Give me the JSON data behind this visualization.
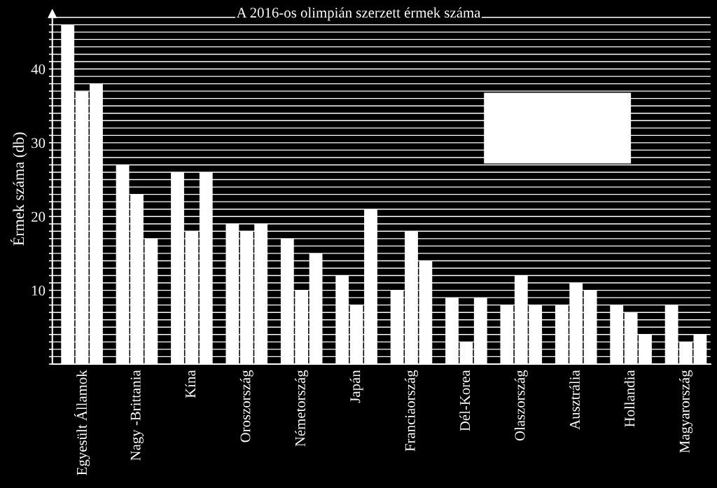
{
  "chart_data": {
    "type": "bar",
    "title": "A 2016-os olimpián szerzett érmek száma",
    "ylabel": "Érmek száma (db)",
    "categories": [
      "Egyesült Államok",
      "Nagy -Brittania",
      "Kína",
      "Oroszország",
      "Németország",
      "Japán",
      "Franciaország",
      "Dél-Korea",
      "Olaszország",
      "Ausztrália",
      "Hollandia",
      "Magyarország"
    ],
    "series": [
      {
        "color": "#ffffff",
        "values": [
          46,
          27,
          26,
          19,
          17,
          12,
          10,
          9,
          8,
          8,
          8,
          8
        ]
      },
      {
        "color": "#ffffff",
        "values": [
          37,
          23,
          18,
          18,
          10,
          8,
          18,
          3,
          12,
          11,
          7,
          3
        ]
      },
      {
        "color": "#ffffff",
        "values": [
          38,
          17,
          26,
          19,
          15,
          21,
          14,
          9,
          8,
          10,
          4,
          4
        ]
      }
    ],
    "ylim": [
      0,
      47.5
    ],
    "yticks": [
      {
        "value": 0,
        "label": null
      },
      {
        "value": 1,
        "label": null
      },
      {
        "value": 2,
        "label": null
      },
      {
        "value": 3,
        "label": null
      },
      {
        "value": 4,
        "label": null
      },
      {
        "value": 5,
        "label": null
      },
      {
        "value": 6,
        "label": null
      },
      {
        "value": 7,
        "label": null
      },
      {
        "value": 8,
        "label": null
      },
      {
        "value": 9,
        "label": null
      },
      10,
      {
        "value": 11,
        "label": null
      },
      {
        "value": 12,
        "label": null
      },
      {
        "value": 13,
        "label": null
      },
      {
        "value": 14,
        "label": null
      },
      {
        "value": 15,
        "label": null
      },
      {
        "value": 16,
        "label": null
      },
      {
        "value": 17,
        "label": null
      },
      {
        "value": 18,
        "label": null
      },
      {
        "value": 19,
        "label": null
      },
      20,
      {
        "value": 21,
        "label": null
      },
      {
        "value": 22,
        "label": null
      },
      {
        "value": 23,
        "label": null
      },
      {
        "value": 24,
        "label": null
      },
      {
        "value": 25,
        "label": null
      },
      {
        "value": 26,
        "label": null
      },
      {
        "value": 27,
        "label": null
      },
      {
        "value": 28,
        "label": null
      },
      {
        "value": 29,
        "label": null
      },
      30,
      {
        "value": 31,
        "label": null
      },
      {
        "value": 32,
        "label": null
      },
      {
        "value": 33,
        "label": null
      },
      {
        "value": 34,
        "label": null
      },
      {
        "value": 35,
        "label": null
      },
      {
        "value": 36,
        "label": null
      },
      {
        "value": 37,
        "label": null
      },
      {
        "value": 38,
        "label": null
      },
      {
        "value": 39,
        "label": null
      },
      40,
      {
        "value": 41,
        "label": null
      },
      {
        "value": 42,
        "label": null
      },
      {
        "value": 43,
        "label": null
      },
      {
        "value": 44,
        "label": null
      },
      {
        "value": 45,
        "label": null
      },
      {
        "value": 46,
        "label": null
      },
      {
        "value": 47,
        "label": null
      }
    ],
    "grid": "y"
  }
}
